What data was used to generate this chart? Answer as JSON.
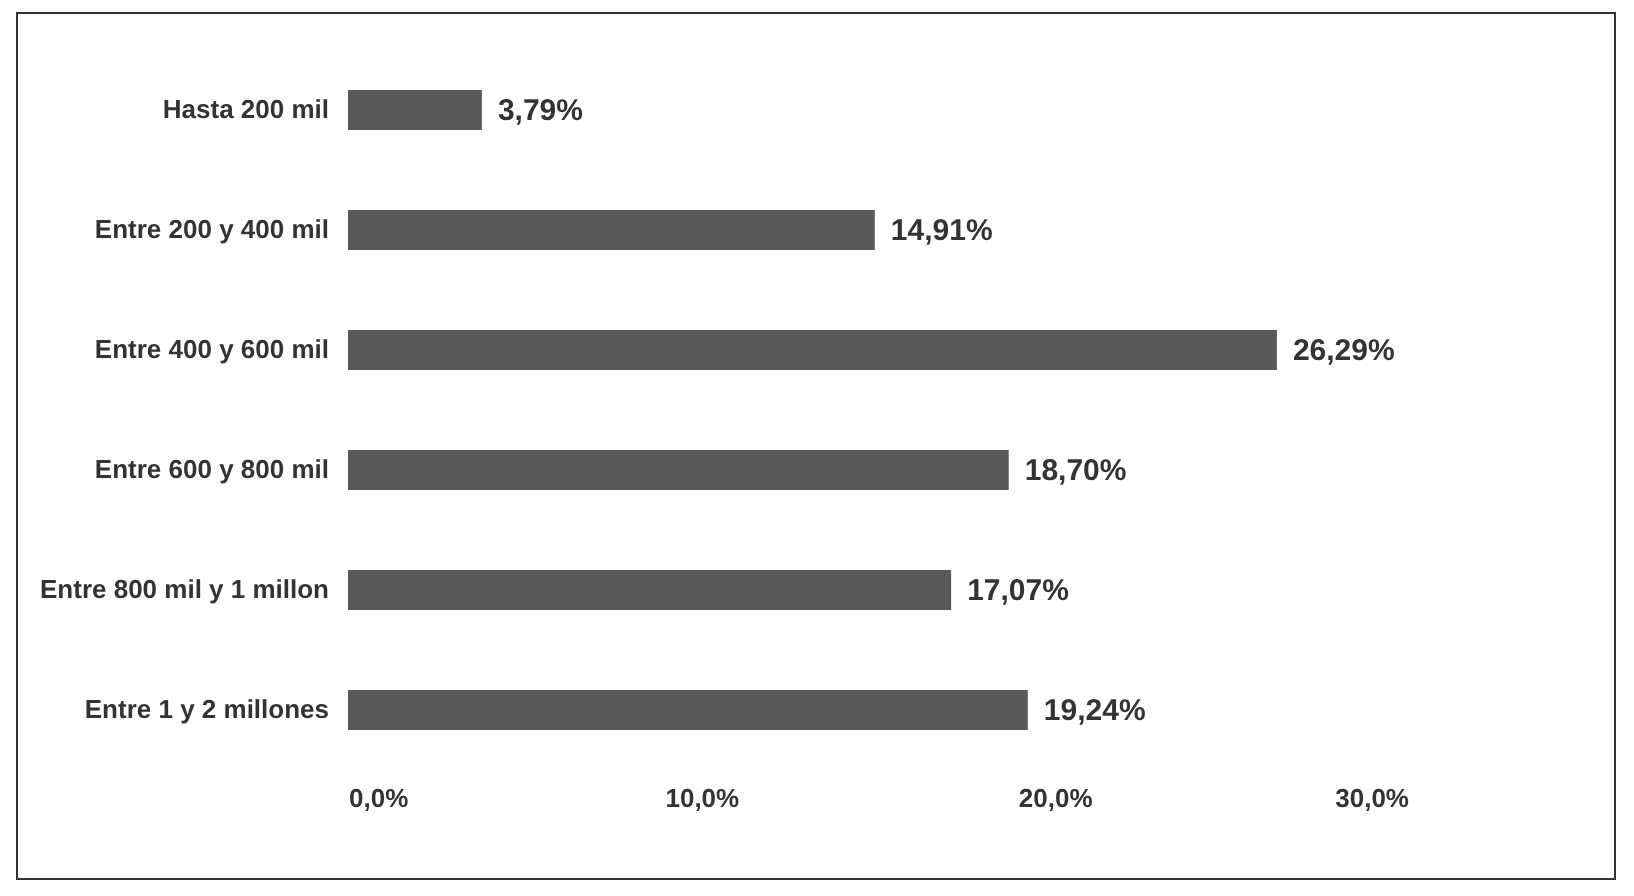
{
  "chart_data": {
    "type": "bar",
    "orientation": "horizontal",
    "categories": [
      "Hasta 200 mil",
      "Entre 200 y 400 mil",
      "Entre 400 y 600 mil",
      "Entre 600 y 800 mil",
      "Entre 800 mil y 1 millon",
      "Entre 1 y 2 millones"
    ],
    "values": [
      3.79,
      14.91,
      26.29,
      18.7,
      17.07,
      19.24
    ],
    "value_labels": [
      "3,79%",
      "14,91%",
      "26,29%",
      "18,70%",
      "17,07%",
      "19,24%"
    ],
    "color": "#595959",
    "xlim": [
      0,
      30
    ],
    "xticks": [
      {
        "value": 0,
        "label": "0,0%"
      },
      {
        "value": 10,
        "label": "10,0%"
      },
      {
        "value": 20,
        "label": "20,0%"
      },
      {
        "value": 30,
        "label": "30,0%"
      }
    ],
    "grid": false
  }
}
